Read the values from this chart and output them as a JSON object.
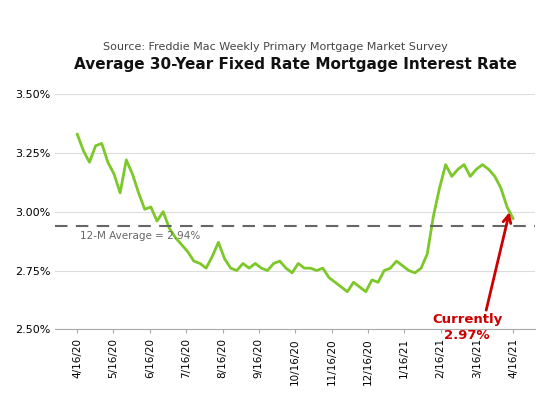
{
  "title": "Average 30-Year Fixed Rate Mortgage Interest Rate",
  "subtitle": "Source: Freddie Mac Weekly Primary Mortgage Market Survey",
  "avg_label": "12-M Average = 2.94%",
  "avg_value": 0.0294,
  "current_label": "Currently\n2.97%",
  "current_value": 0.0297,
  "line_color": "#7DC829",
  "avg_line_color": "#666666",
  "current_color": "#CC0000",
  "bg_color": "#FFFFFF",
  "ylim": [
    0.025,
    0.035
  ],
  "yticks": [
    0.025,
    0.0275,
    0.03,
    0.0325,
    0.035
  ],
  "xtick_labels": [
    "4/16/20",
    "5/16/20",
    "6/16/20",
    "7/16/20",
    "8/16/20",
    "9/16/20",
    "10/16/20",
    "11/16/20",
    "12/16/20",
    "1/16/21",
    "2/16/21",
    "3/16/21",
    "4/16/21"
  ],
  "values": [
    0.0333,
    0.0326,
    0.0321,
    0.0328,
    0.0329,
    0.0321,
    0.0316,
    0.0308,
    0.0322,
    0.0316,
    0.0308,
    0.0301,
    0.0302,
    0.0296,
    0.03,
    0.0293,
    0.0289,
    0.0286,
    0.0283,
    0.0279,
    0.0278,
    0.0276,
    0.0281,
    0.0287,
    0.028,
    0.0276,
    0.0275,
    0.0278,
    0.0276,
    0.0278,
    0.0276,
    0.0275,
    0.0278,
    0.0279,
    0.0276,
    0.0274,
    0.0278,
    0.0276,
    0.0276,
    0.0275,
    0.0276,
    0.0272,
    0.027,
    0.0268,
    0.0266,
    0.027,
    0.0268,
    0.0266,
    0.0271,
    0.027,
    0.0275,
    0.0276,
    0.0279,
    0.0277,
    0.0275,
    0.0274,
    0.0276,
    0.0282,
    0.0298,
    0.031,
    0.032,
    0.0315,
    0.0318,
    0.032,
    0.0315,
    0.0318,
    0.032,
    0.0318,
    0.0315,
    0.031,
    0.0302,
    0.0297
  ]
}
